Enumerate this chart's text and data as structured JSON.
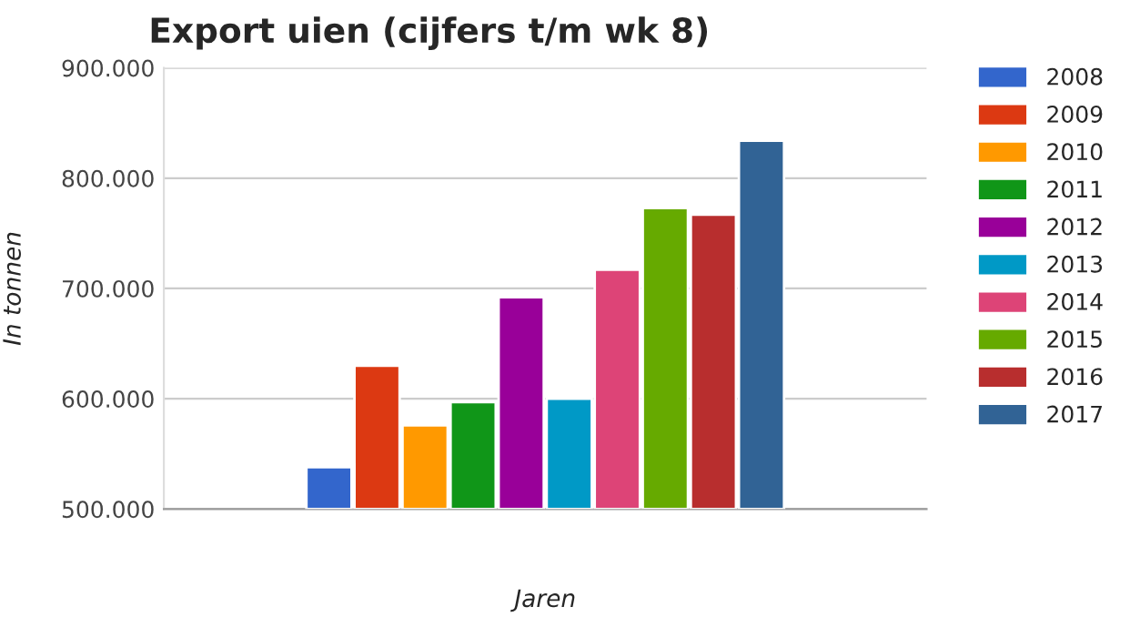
{
  "chart_data": {
    "type": "bar",
    "title": "Export uien (cijfers t/m wk 8)",
    "xlabel": "Jaren",
    "ylabel": "In tonnen",
    "categories": [
      null
    ],
    "series": [
      {
        "name": "2008",
        "color": "#3366cc",
        "values": [
          538000
        ]
      },
      {
        "name": "2009",
        "color": "#dc3912",
        "values": [
          630000
        ]
      },
      {
        "name": "2010",
        "color": "#ff9900",
        "values": [
          576000
        ]
      },
      {
        "name": "2011",
        "color": "#109618",
        "values": [
          597000
        ]
      },
      {
        "name": "2012",
        "color": "#990099",
        "values": [
          692000
        ]
      },
      {
        "name": "2013",
        "color": "#0099c6",
        "values": [
          600000
        ]
      },
      {
        "name": "2014",
        "color": "#dd4477",
        "values": [
          717000
        ]
      },
      {
        "name": "2015",
        "color": "#66aa00",
        "values": [
          773000
        ]
      },
      {
        "name": "2016",
        "color": "#b82e2e",
        "values": [
          767000
        ]
      },
      {
        "name": "2017",
        "color": "#316395",
        "values": [
          834000
        ]
      }
    ],
    "ylim": [
      500000,
      900000
    ],
    "yticks": [
      {
        "value": 500000,
        "label": "500.000"
      },
      {
        "value": 600000,
        "label": "600.000"
      },
      {
        "value": 700000,
        "label": "700.000"
      },
      {
        "value": 800000,
        "label": "800.000"
      },
      {
        "value": 900000,
        "label": "900.000"
      }
    ],
    "grid": "y",
    "legend": "right"
  }
}
